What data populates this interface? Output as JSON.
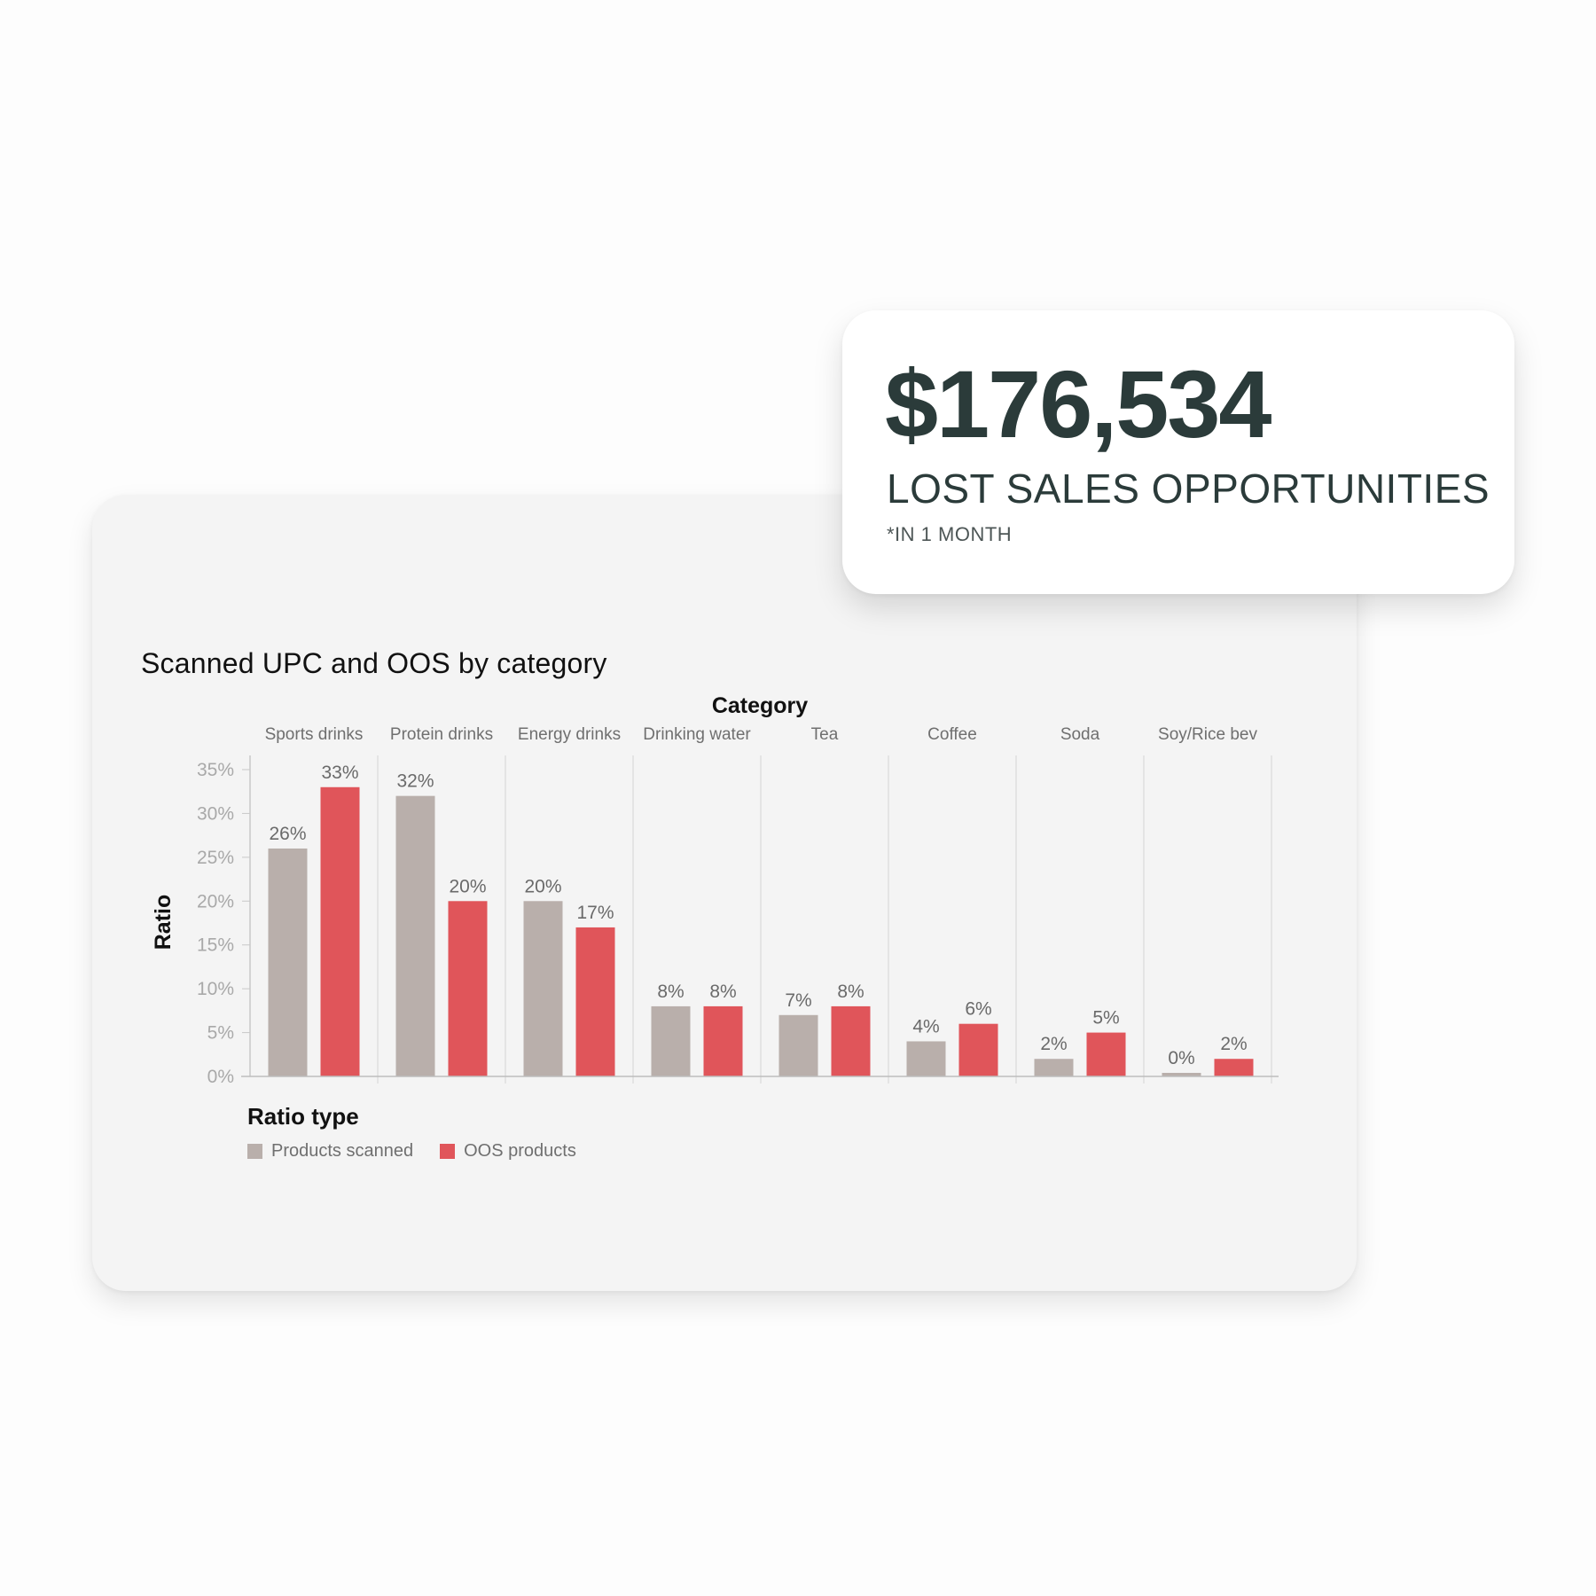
{
  "kpi": {
    "amount": "$176,534",
    "label": "LOST SALES OPPORTUNITIES",
    "note": "*IN 1 MONTH"
  },
  "colors": {
    "products_scanned": "#b9afab",
    "oos_products": "#e0555a",
    "kpi_text": "#2b3b3a"
  },
  "chart_data": {
    "type": "bar",
    "title": "Scanned UPC and OOS by category",
    "xlabel": "Category",
    "ylabel": "Ratio",
    "ylim": [
      0,
      35
    ],
    "yticks": [
      "0%",
      "5%",
      "10%",
      "15%",
      "20%",
      "25%",
      "30%",
      "35%"
    ],
    "categories": [
      "Sports drinks",
      "Protein drinks",
      "Energy drinks",
      "Drinking water",
      "Tea",
      "Coffee",
      "Soda",
      "Soy/Rice bev"
    ],
    "series": [
      {
        "name": "Products scanned",
        "values": [
          26,
          32,
          20,
          8,
          7,
          4,
          2,
          0
        ],
        "labels": [
          "26%",
          "32%",
          "20%",
          "8%",
          "7%",
          "4%",
          "2%",
          "0%"
        ]
      },
      {
        "name": "OOS products",
        "values": [
          33,
          20,
          17,
          8,
          8,
          6,
          5,
          2
        ],
        "labels": [
          "33%",
          "20%",
          "17%",
          "8%",
          "8%",
          "6%",
          "5%",
          "2%"
        ]
      }
    ],
    "legend_title": "Ratio type",
    "legend_position": "bottom-left",
    "grid": "vertical category separators"
  }
}
